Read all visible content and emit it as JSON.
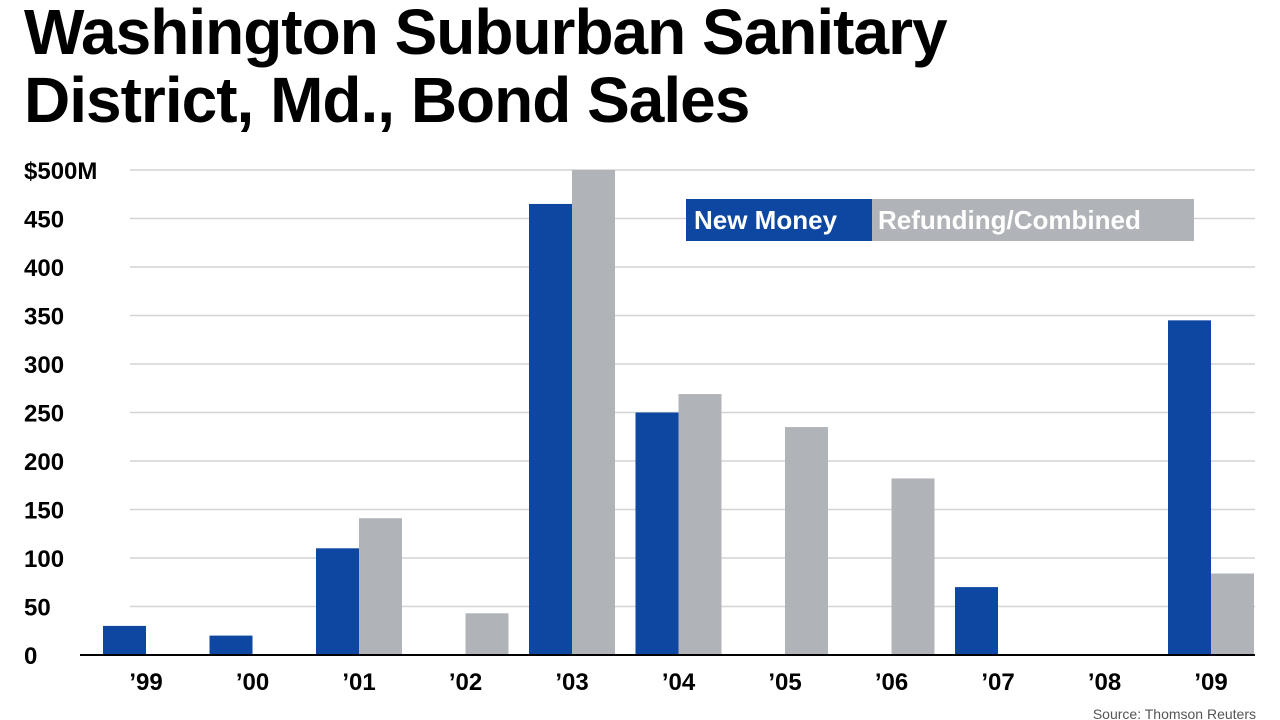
{
  "chart_data": {
    "type": "bar",
    "title_lines": [
      "Washington Suburban Sanitary",
      "District, Md., Bond Sales"
    ],
    "categories": [
      "’99",
      "’00",
      "’01",
      "’02",
      "’03",
      "’04",
      "’05",
      "’06",
      "’07",
      "’08",
      "’09"
    ],
    "series": [
      {
        "name": "New Money",
        "color": "#0d47a1",
        "values": [
          30,
          20,
          110,
          0,
          465,
          250,
          0,
          0,
          70,
          0,
          345
        ]
      },
      {
        "name": "Refunding/Combined",
        "color": "#b0b4b8",
        "values": [
          0,
          0,
          141,
          43,
          500,
          269,
          235,
          182,
          0,
          0,
          84
        ]
      }
    ],
    "y_ticks": [
      0,
      50,
      100,
      150,
      200,
      250,
      300,
      350,
      400,
      450,
      500
    ],
    "y_tick_labels": [
      "0",
      "50",
      "100",
      "150",
      "200",
      "250",
      "300",
      "350",
      "400",
      "450",
      "$500M"
    ],
    "ylim": [
      0,
      500
    ],
    "xlabel": "",
    "ylabel": "",
    "grid": true,
    "legend_position": "top-right",
    "source": "Source: Thomson Reuters"
  }
}
